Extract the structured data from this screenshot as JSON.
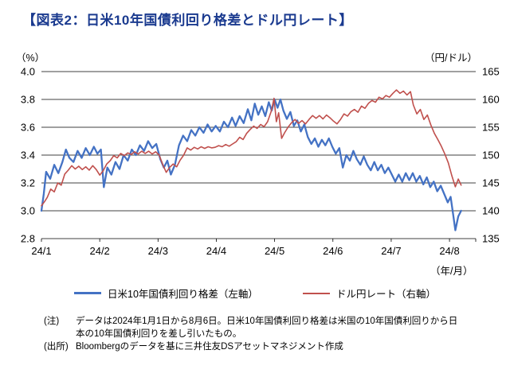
{
  "title": "【図表2：日米10年国債利回り格差とドル円レート】",
  "title_color": "#1A3A8F",
  "chart_data": {
    "type": "line",
    "title": "日米10年国債利回り格差とドル円レート",
    "grid": "horizontal",
    "gridline_color": "#000000",
    "left_axis": {
      "unit": "（%）",
      "min": 2.8,
      "max": 4.0,
      "ticks": [
        "4.0",
        "3.8",
        "3.6",
        "3.4",
        "3.2",
        "3.0",
        "2.8"
      ]
    },
    "right_axis": {
      "unit": "（円/ドル）",
      "min": 135,
      "max": 165,
      "ticks": [
        "165",
        "160",
        "155",
        "150",
        "145",
        "140",
        "135"
      ]
    },
    "x_axis": {
      "unit": "（年/月）",
      "labels": [
        "24/1",
        "24/2",
        "24/3",
        "24/4",
        "24/5",
        "24/6",
        "24/7",
        "24/8"
      ],
      "min": 0,
      "max": 7.45,
      "note": "x values are months since 2024-01-01 (0=24/1 ... 7=24/8)"
    },
    "legend_position": "bottom",
    "series": [
      {
        "name": "日米10年国債利回り格差（左軸）",
        "axis": "left",
        "color": "#4472C4",
        "points": [
          [
            0.0,
            3.0
          ],
          [
            0.04,
            3.12
          ],
          [
            0.08,
            3.28
          ],
          [
            0.15,
            3.23
          ],
          [
            0.22,
            3.33
          ],
          [
            0.29,
            3.27
          ],
          [
            0.36,
            3.35
          ],
          [
            0.42,
            3.44
          ],
          [
            0.48,
            3.38
          ],
          [
            0.55,
            3.35
          ],
          [
            0.62,
            3.43
          ],
          [
            0.69,
            3.38
          ],
          [
            0.76,
            3.45
          ],
          [
            0.83,
            3.4
          ],
          [
            0.9,
            3.46
          ],
          [
            0.96,
            3.41
          ],
          [
            1.02,
            3.44
          ],
          [
            1.07,
            3.17
          ],
          [
            1.13,
            3.31
          ],
          [
            1.2,
            3.26
          ],
          [
            1.27,
            3.35
          ],
          [
            1.34,
            3.3
          ],
          [
            1.41,
            3.4
          ],
          [
            1.48,
            3.36
          ],
          [
            1.55,
            3.44
          ],
          [
            1.62,
            3.4
          ],
          [
            1.69,
            3.47
          ],
          [
            1.76,
            3.43
          ],
          [
            1.83,
            3.5
          ],
          [
            1.9,
            3.45
          ],
          [
            1.97,
            3.48
          ],
          [
            2.04,
            3.37
          ],
          [
            2.1,
            3.31
          ],
          [
            2.16,
            3.36
          ],
          [
            2.22,
            3.26
          ],
          [
            2.29,
            3.33
          ],
          [
            2.36,
            3.47
          ],
          [
            2.43,
            3.54
          ],
          [
            2.5,
            3.5
          ],
          [
            2.57,
            3.58
          ],
          [
            2.64,
            3.54
          ],
          [
            2.71,
            3.6
          ],
          [
            2.78,
            3.56
          ],
          [
            2.85,
            3.62
          ],
          [
            2.92,
            3.57
          ],
          [
            2.99,
            3.61
          ],
          [
            3.06,
            3.57
          ],
          [
            3.13,
            3.64
          ],
          [
            3.2,
            3.6
          ],
          [
            3.27,
            3.67
          ],
          [
            3.33,
            3.61
          ],
          [
            3.4,
            3.68
          ],
          [
            3.47,
            3.63
          ],
          [
            3.54,
            3.73
          ],
          [
            3.6,
            3.65
          ],
          [
            3.66,
            3.77
          ],
          [
            3.72,
            3.69
          ],
          [
            3.78,
            3.75
          ],
          [
            3.84,
            3.68
          ],
          [
            3.9,
            3.78
          ],
          [
            3.95,
            3.72
          ],
          [
            4.0,
            3.8
          ],
          [
            4.05,
            3.74
          ],
          [
            4.1,
            3.8
          ],
          [
            4.15,
            3.72
          ],
          [
            4.21,
            3.66
          ],
          [
            4.27,
            3.71
          ],
          [
            4.33,
            3.61
          ],
          [
            4.39,
            3.65
          ],
          [
            4.45,
            3.57
          ],
          [
            4.51,
            3.62
          ],
          [
            4.57,
            3.53
          ],
          [
            4.63,
            3.48
          ],
          [
            4.69,
            3.52
          ],
          [
            4.75,
            3.46
          ],
          [
            4.81,
            3.51
          ],
          [
            4.87,
            3.47
          ],
          [
            4.93,
            3.52
          ],
          [
            4.99,
            3.46
          ],
          [
            5.05,
            3.41
          ],
          [
            5.11,
            3.45
          ],
          [
            5.17,
            3.31
          ],
          [
            5.23,
            3.4
          ],
          [
            5.29,
            3.36
          ],
          [
            5.35,
            3.43
          ],
          [
            5.41,
            3.37
          ],
          [
            5.47,
            3.33
          ],
          [
            5.53,
            3.39
          ],
          [
            5.59,
            3.33
          ],
          [
            5.65,
            3.29
          ],
          [
            5.71,
            3.35
          ],
          [
            5.77,
            3.29
          ],
          [
            5.83,
            3.33
          ],
          [
            5.89,
            3.27
          ],
          [
            5.95,
            3.31
          ],
          [
            6.01,
            3.26
          ],
          [
            6.07,
            3.21
          ],
          [
            6.13,
            3.26
          ],
          [
            6.19,
            3.21
          ],
          [
            6.25,
            3.27
          ],
          [
            6.31,
            3.22
          ],
          [
            6.37,
            3.27
          ],
          [
            6.43,
            3.21
          ],
          [
            6.49,
            3.25
          ],
          [
            6.55,
            3.19
          ],
          [
            6.61,
            3.24
          ],
          [
            6.67,
            3.17
          ],
          [
            6.73,
            3.21
          ],
          [
            6.79,
            3.14
          ],
          [
            6.85,
            3.18
          ],
          [
            6.91,
            3.12
          ],
          [
            6.97,
            3.06
          ],
          [
            7.02,
            3.1
          ],
          [
            7.06,
            2.98
          ],
          [
            7.1,
            2.86
          ],
          [
            7.15,
            2.96
          ],
          [
            7.2,
            3.0
          ]
        ]
      },
      {
        "name": "ドル円レート（右軸）",
        "axis": "right",
        "color": "#C0504D",
        "points": [
          [
            0.0,
            140.9
          ],
          [
            0.05,
            141.6
          ],
          [
            0.1,
            142.4
          ],
          [
            0.16,
            143.9
          ],
          [
            0.22,
            143.4
          ],
          [
            0.28,
            145.0
          ],
          [
            0.34,
            144.6
          ],
          [
            0.4,
            146.6
          ],
          [
            0.46,
            147.3
          ],
          [
            0.52,
            148.1
          ],
          [
            0.58,
            147.5
          ],
          [
            0.64,
            148.0
          ],
          [
            0.7,
            147.4
          ],
          [
            0.76,
            147.9
          ],
          [
            0.82,
            147.3
          ],
          [
            0.88,
            148.1
          ],
          [
            0.94,
            147.4
          ],
          [
            1.0,
            146.4
          ],
          [
            1.06,
            147.2
          ],
          [
            1.12,
            148.4
          ],
          [
            1.18,
            149.0
          ],
          [
            1.24,
            149.9
          ],
          [
            1.3,
            149.5
          ],
          [
            1.36,
            150.3
          ],
          [
            1.42,
            149.9
          ],
          [
            1.48,
            150.4
          ],
          [
            1.54,
            150.1
          ],
          [
            1.6,
            150.6
          ],
          [
            1.66,
            150.2
          ],
          [
            1.72,
            150.7
          ],
          [
            1.78,
            150.3
          ],
          [
            1.84,
            150.7
          ],
          [
            1.9,
            150.2
          ],
          [
            1.96,
            150.6
          ],
          [
            2.02,
            150.0
          ],
          [
            2.08,
            148.3
          ],
          [
            2.14,
            146.9
          ],
          [
            2.2,
            147.8
          ],
          [
            2.26,
            148.4
          ],
          [
            2.32,
            147.9
          ],
          [
            2.38,
            149.1
          ],
          [
            2.44,
            150.0
          ],
          [
            2.5,
            151.3
          ],
          [
            2.56,
            150.9
          ],
          [
            2.62,
            151.4
          ],
          [
            2.68,
            151.1
          ],
          [
            2.74,
            151.5
          ],
          [
            2.8,
            151.2
          ],
          [
            2.86,
            151.5
          ],
          [
            2.92,
            151.3
          ],
          [
            2.98,
            151.4
          ],
          [
            3.04,
            151.7
          ],
          [
            3.1,
            151.5
          ],
          [
            3.16,
            151.9
          ],
          [
            3.22,
            151.6
          ],
          [
            3.28,
            152.0
          ],
          [
            3.34,
            152.4
          ],
          [
            3.4,
            153.2
          ],
          [
            3.46,
            152.8
          ],
          [
            3.52,
            153.9
          ],
          [
            3.58,
            154.6
          ],
          [
            3.64,
            155.2
          ],
          [
            3.7,
            154.8
          ],
          [
            3.76,
            155.5
          ],
          [
            3.82,
            155.1
          ],
          [
            3.88,
            156.0
          ],
          [
            3.94,
            157.8
          ],
          [
            3.99,
            160.2
          ],
          [
            4.03,
            156.0
          ],
          [
            4.07,
            157.6
          ],
          [
            4.12,
            153.0
          ],
          [
            4.17,
            154.0
          ],
          [
            4.23,
            155.0
          ],
          [
            4.29,
            155.8
          ],
          [
            4.35,
            156.4
          ],
          [
            4.41,
            155.7
          ],
          [
            4.47,
            156.2
          ],
          [
            4.53,
            155.6
          ],
          [
            4.59,
            156.4
          ],
          [
            4.65,
            157.1
          ],
          [
            4.71,
            156.6
          ],
          [
            4.77,
            157.1
          ],
          [
            4.83,
            156.5
          ],
          [
            4.89,
            157.2
          ],
          [
            4.95,
            156.7
          ],
          [
            5.01,
            156.1
          ],
          [
            5.07,
            155.6
          ],
          [
            5.13,
            156.4
          ],
          [
            5.19,
            157.4
          ],
          [
            5.25,
            157.0
          ],
          [
            5.31,
            157.8
          ],
          [
            5.37,
            158.2
          ],
          [
            5.43,
            157.7
          ],
          [
            5.49,
            158.8
          ],
          [
            5.55,
            158.4
          ],
          [
            5.61,
            159.3
          ],
          [
            5.67,
            159.8
          ],
          [
            5.73,
            159.5
          ],
          [
            5.79,
            160.4
          ],
          [
            5.85,
            160.1
          ],
          [
            5.91,
            160.7
          ],
          [
            5.97,
            160.4
          ],
          [
            6.03,
            161.1
          ],
          [
            6.09,
            161.7
          ],
          [
            6.15,
            161.1
          ],
          [
            6.21,
            161.5
          ],
          [
            6.27,
            160.8
          ],
          [
            6.33,
            161.4
          ],
          [
            6.38,
            159.0
          ],
          [
            6.44,
            157.4
          ],
          [
            6.5,
            158.2
          ],
          [
            6.56,
            156.4
          ],
          [
            6.62,
            157.2
          ],
          [
            6.68,
            155.4
          ],
          [
            6.74,
            153.9
          ],
          [
            6.8,
            152.8
          ],
          [
            6.86,
            151.6
          ],
          [
            6.92,
            150.2
          ],
          [
            6.98,
            148.6
          ],
          [
            7.04,
            146.3
          ],
          [
            7.1,
            144.3
          ],
          [
            7.15,
            145.7
          ],
          [
            7.2,
            144.6
          ]
        ]
      }
    ]
  },
  "notes": {
    "note_label": "(注)",
    "note_text": "データは2024年1月1日から8月6日。日米10年国債利回り格差は米国の10年国債利回りから日本の10年国債利回りを差し引いたもの。",
    "source_label": "(出所)",
    "source_text": "Bloombergのデータを基に三井住友DSアセットマネジメント作成"
  }
}
